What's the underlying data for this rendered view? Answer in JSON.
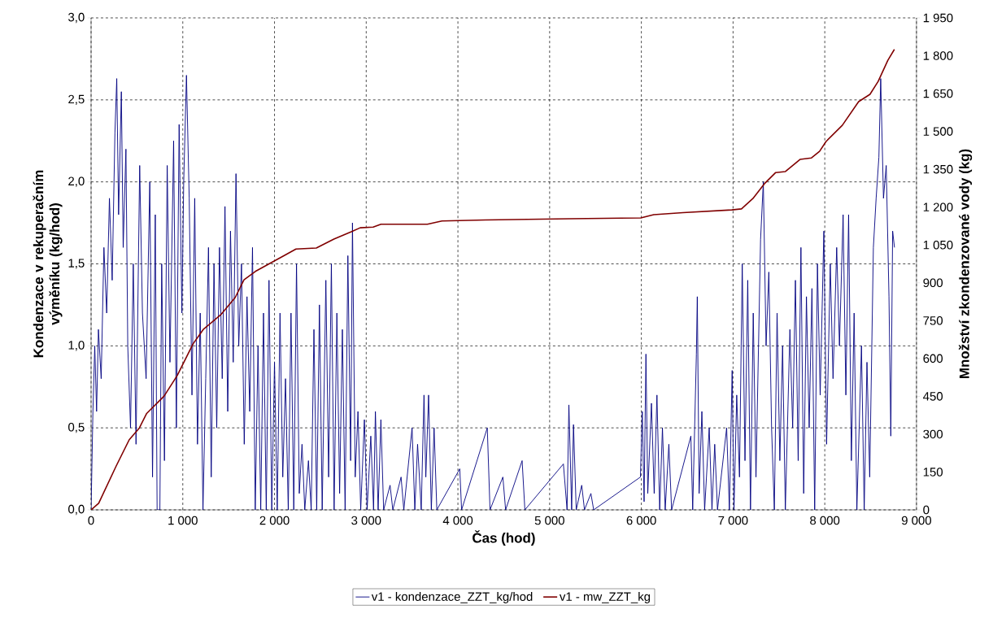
{
  "chart_data": {
    "type": "line",
    "xlabel": "Čas (hod)",
    "ylabel": "Kondenzace v rekuperačním výměníku (kg/hod)",
    "y2label": "Množství zkondenzované vody (kg)",
    "xlim": [
      0,
      9000
    ],
    "ylim": [
      0,
      3.0
    ],
    "y2lim": [
      0,
      1950
    ],
    "xticks": [
      0,
      {
        "value": 1000,
        "label": "1 000"
      },
      {
        "value": 2000,
        "label": "2 000"
      },
      {
        "value": 3000,
        "label": "3 000"
      },
      {
        "value": 4000,
        "label": "4 000"
      },
      {
        "value": 5000,
        "label": "5 000"
      },
      {
        "value": 6000,
        "label": "6 000"
      },
      {
        "value": 7000,
        "label": "7 000"
      },
      {
        "value": 8000,
        "label": "8 000"
      },
      {
        "value": 9000,
        "label": "9 000"
      }
    ],
    "yticks": [
      {
        "value": 0,
        "label": "0,0"
      },
      {
        "value": 0.5,
        "label": "0,5"
      },
      {
        "value": 1.0,
        "label": "1,0"
      },
      {
        "value": 1.5,
        "label": "1,5"
      },
      {
        "value": 2.0,
        "label": "2,0"
      },
      {
        "value": 2.5,
        "label": "2,5"
      },
      {
        "value": 3.0,
        "label": "3,0"
      }
    ],
    "y2ticks": [
      0,
      150,
      300,
      450,
      600,
      750,
      900,
      {
        "value": 1050,
        "label": "1 050"
      },
      {
        "value": 1200,
        "label": "1 200"
      },
      {
        "value": 1350,
        "label": "1 350"
      },
      {
        "value": 1500,
        "label": "1 500"
      },
      {
        "value": 1650,
        "label": "1 650"
      },
      {
        "value": 1800,
        "label": "1 800"
      },
      {
        "value": 1950,
        "label": "1 950"
      }
    ],
    "grid": true,
    "legend": "bottom",
    "marker": "none",
    "series": [
      {
        "name": "v1 - kondenzace_ZZT_kg/hod",
        "color": "#000080",
        "x": [
          0,
          20,
          40,
          60,
          80,
          110,
          140,
          170,
          200,
          230,
          260,
          280,
          300,
          330,
          350,
          380,
          400,
          430,
          460,
          490,
          530,
          560,
          600,
          640,
          670,
          700,
          720,
          750,
          770,
          800,
          830,
          860,
          900,
          930,
          960,
          990,
          1010,
          1040,
          1070,
          1100,
          1130,
          1160,
          1190,
          1220,
          1250,
          1280,
          1310,
          1340,
          1370,
          1400,
          1430,
          1460,
          1490,
          1520,
          1550,
          1580,
          1610,
          1640,
          1670,
          1700,
          1730,
          1760,
          1790,
          1820,
          1850,
          1880,
          1910,
          1940,
          1970,
          2000,
          2030,
          2060,
          2090,
          2120,
          2150,
          2180,
          2210,
          2240,
          2270,
          2300,
          2330,
          2370,
          2400,
          2430,
          2460,
          2490,
          2520,
          2560,
          2590,
          2620,
          2650,
          2680,
          2710,
          2740,
          2770,
          2800,
          2830,
          2850,
          2880,
          2910,
          2940,
          2980,
          3010,
          3050,
          3080,
          3100,
          3130,
          3160,
          3190,
          3260,
          3290,
          3380,
          3410,
          3500,
          3530,
          3560,
          3600,
          3630,
          3650,
          3680,
          3710,
          3740,
          3770,
          4020,
          4040,
          4320,
          4350,
          4490,
          4520,
          4700,
          4730,
          5150,
          5190,
          5210,
          5240,
          5260,
          5290,
          5350,
          5380,
          5450,
          5480,
          5990,
          6010,
          6030,
          6050,
          6070,
          6110,
          6140,
          6170,
          6200,
          6230,
          6260,
          6300,
          6330,
          6540,
          6560,
          6600,
          6610,
          6630,
          6660,
          6690,
          6740,
          6770,
          6800,
          6830,
          6930,
          6960,
          6990,
          7010,
          7040,
          7070,
          7100,
          7130,
          7160,
          7190,
          7220,
          7250,
          7300,
          7330,
          7360,
          7390,
          7420,
          7450,
          7480,
          7510,
          7540,
          7570,
          7620,
          7650,
          7680,
          7710,
          7740,
          7770,
          7800,
          7830,
          7860,
          7890,
          7920,
          7950,
          7990,
          8020,
          8060,
          8090,
          8130,
          8160,
          8200,
          8230,
          8260,
          8290,
          8320,
          8350,
          8400,
          8430,
          8460,
          8490,
          8530,
          8560,
          8590,
          8610,
          8640,
          8670,
          8700,
          8720,
          8740,
          8760
        ],
        "values": [
          0.0,
          0.6,
          1.0,
          0.6,
          1.1,
          0.8,
          1.6,
          1.2,
          1.9,
          1.4,
          2.3,
          2.63,
          1.8,
          2.55,
          1.6,
          2.2,
          1.0,
          0.5,
          1.5,
          0.4,
          2.1,
          1.2,
          0.8,
          2.0,
          0.2,
          1.8,
          0.0,
          0.0,
          1.5,
          0.3,
          2.1,
          0.9,
          2.25,
          0.5,
          2.35,
          1.2,
          2.0,
          2.65,
          1.9,
          0.7,
          1.9,
          0.4,
          1.2,
          0.0,
          0.8,
          1.6,
          0.2,
          1.5,
          0.5,
          1.6,
          0.8,
          1.85,
          0.6,
          1.7,
          0.9,
          2.05,
          1.0,
          1.5,
          0.4,
          1.3,
          0.6,
          1.6,
          0.0,
          1.0,
          0.0,
          1.2,
          0.0,
          1.4,
          0.0,
          0.9,
          0.0,
          1.2,
          0.2,
          0.8,
          0.0,
          1.2,
          0.0,
          1.5,
          0.1,
          0.4,
          0.0,
          0.3,
          0.0,
          1.1,
          0.0,
          1.25,
          0.0,
          1.4,
          0.2,
          1.5,
          0.0,
          1.2,
          0.1,
          1.1,
          0.0,
          1.55,
          0.3,
          1.75,
          0.2,
          0.6,
          0.0,
          0.55,
          0.0,
          0.45,
          0.0,
          0.6,
          0.0,
          0.55,
          0.0,
          0.15,
          0.0,
          0.2,
          0.0,
          0.5,
          0.0,
          0.4,
          0.0,
          0.7,
          0.2,
          0.7,
          0.0,
          0.5,
          0.0,
          0.25,
          0.0,
          0.5,
          0.0,
          0.2,
          0.0,
          0.3,
          0.0,
          0.28,
          0.0,
          0.64,
          0.0,
          0.52,
          0.0,
          0.15,
          0.0,
          0.1,
          0.0,
          0.2,
          0.6,
          0.05,
          0.95,
          0.1,
          0.65,
          0.1,
          0.7,
          0.0,
          0.5,
          0.0,
          0.4,
          0.0,
          0.45,
          0.0,
          0.95,
          1.3,
          0.1,
          0.6,
          0.0,
          0.5,
          0.0,
          0.4,
          0.0,
          0.5,
          0.0,
          0.85,
          0.0,
          0.7,
          0.2,
          1.5,
          0.3,
          1.4,
          0.0,
          1.2,
          0.2,
          1.65,
          2.0,
          1.0,
          1.45,
          0.5,
          0.0,
          1.2,
          0.3,
          1.0,
          0.0,
          1.1,
          0.5,
          1.4,
          0.3,
          1.6,
          0.1,
          1.3,
          0.5,
          1.35,
          0.0,
          1.5,
          0.7,
          1.7,
          0.4,
          1.5,
          0.8,
          1.6,
          1.0,
          1.8,
          0.7,
          1.8,
          0.3,
          1.2,
          0.0,
          1.0,
          0.0,
          0.9,
          0.2,
          1.6,
          1.9,
          2.15,
          2.63,
          1.9,
          2.1,
          1.3,
          0.45,
          1.7,
          1.6
        ]
      },
      {
        "name": "v1 - mw_ZZT_kg",
        "color": "#800000",
        "axis": "y2",
        "x": [
          0,
          83,
          274,
          416,
          527,
          606,
          796,
          939,
          1112,
          1223,
          1413,
          1572,
          1667,
          1791,
          2110,
          2234,
          2456,
          2648,
          2837,
          2934,
          3076,
          3161,
          3667,
          3826,
          4300,
          5219,
          5993,
          6135,
          6454,
          6986,
          7092,
          7216,
          7340,
          7465,
          7571,
          7730,
          7855,
          7943,
          8014,
          8191,
          8369,
          8493,
          8582,
          8688,
          8759
        ],
        "values": [
          0,
          26,
          174,
          278,
          325,
          382,
          451,
          532,
          658,
          715,
          773,
          842,
          912,
          945,
          1009,
          1034,
          1038,
          1073,
          1102,
          1118,
          1121,
          1132,
          1132,
          1145,
          1149,
          1154,
          1157,
          1170,
          1178,
          1189,
          1193,
          1234,
          1292,
          1337,
          1341,
          1389,
          1395,
          1421,
          1460,
          1524,
          1618,
          1647,
          1698,
          1782,
          1825
        ]
      }
    ]
  }
}
